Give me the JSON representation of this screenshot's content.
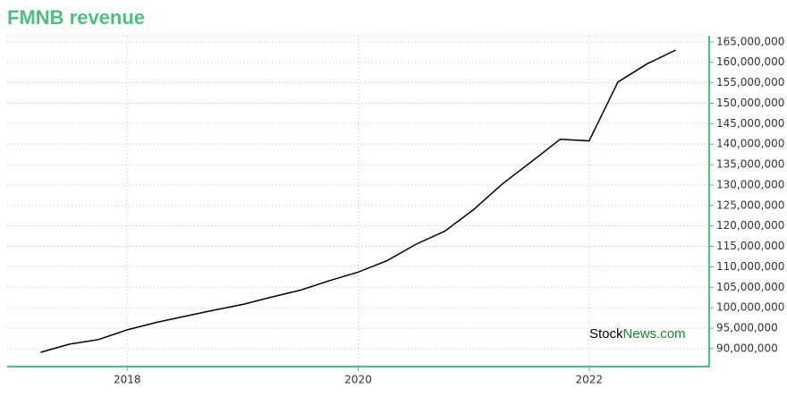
{
  "chart_data": {
    "type": "line",
    "title": "FMNB revenue",
    "x": [
      2017.25,
      2017.5,
      2017.75,
      2018.0,
      2018.25,
      2018.5,
      2018.75,
      2019.0,
      2019.25,
      2019.5,
      2019.75,
      2020.0,
      2020.25,
      2020.5,
      2020.75,
      2021.0,
      2021.25,
      2021.5,
      2021.75,
      2022.0,
      2022.25,
      2022.5,
      2022.75
    ],
    "values": [
      89100000,
      91100000,
      92200000,
      94600000,
      96400000,
      97900000,
      99400000,
      100800000,
      102600000,
      104300000,
      106600000,
      108700000,
      111500000,
      115500000,
      118700000,
      124000000,
      130300000,
      135700000,
      141200000,
      140800000,
      155200000,
      159600000,
      163000000
    ],
    "color": "#000000",
    "xlim": [
      2016.96,
      2023.04
    ],
    "xticks": [
      2018,
      2020,
      2022
    ],
    "ylim": [
      85600000,
      166500000
    ],
    "yticks": [
      {
        "value": 90000000,
        "label": "90,000,000"
      },
      {
        "value": 95000000,
        "label": "95,000,000"
      },
      {
        "value": 100000000,
        "label": "100,000,000"
      },
      {
        "value": 105000000,
        "label": "105,000,000"
      },
      {
        "value": 110000000,
        "label": "110,000,000"
      },
      {
        "value": 115000000,
        "label": "115,000,000"
      },
      {
        "value": 120000000,
        "label": "120,000,000"
      },
      {
        "value": 125000000,
        "label": "125,000,000"
      },
      {
        "value": 130000000,
        "label": "130,000,000"
      },
      {
        "value": 135000000,
        "label": "135,000,000"
      },
      {
        "value": 140000000,
        "label": "140,000,000"
      },
      {
        "value": 145000000,
        "label": "145,000,000"
      },
      {
        "value": 150000000,
        "label": "150,000,000"
      },
      {
        "value": 155000000,
        "label": "155,000,000"
      },
      {
        "value": 160000000,
        "label": "160,000,000"
      },
      {
        "value": 165000000,
        "label": "165,000,000"
      }
    ],
    "grid": true,
    "watermark": [
      "Stock",
      "News.com"
    ]
  }
}
